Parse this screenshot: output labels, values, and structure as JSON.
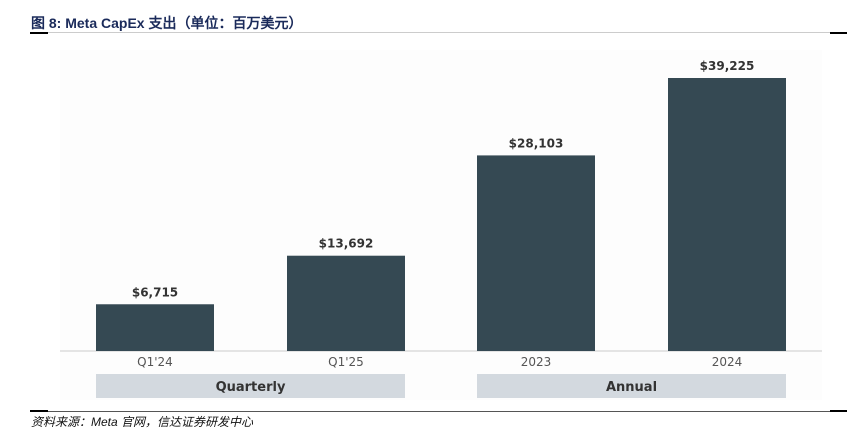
{
  "title": "图 8:  Meta CapEx 支出（单位：百万美元）",
  "source": "资料来源：Meta 官网，信达证券研发中心",
  "chart_data": {
    "type": "bar",
    "categories": [
      "Q1'24",
      "Q1'25",
      "2023",
      "2024"
    ],
    "values": [
      6715,
      13692,
      28103,
      39225
    ],
    "data_labels": [
      "$6,715",
      "$13,692",
      "$28,103",
      "$39,225"
    ],
    "groups": [
      {
        "label": "Quarterly",
        "categories": [
          "Q1'24",
          "Q1'25"
        ]
      },
      {
        "label": "Annual",
        "categories": [
          "2023",
          "2024"
        ]
      }
    ],
    "ylim": [
      0,
      39225
    ],
    "grid": false,
    "colors": {
      "bar": "#354953",
      "group_box": "#d3d9df",
      "axis": "#cccccc"
    }
  }
}
